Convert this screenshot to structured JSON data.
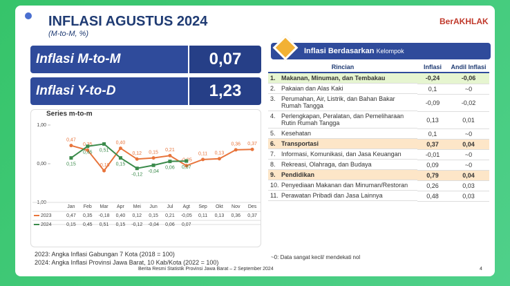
{
  "header": {
    "title": "INFLASI AGUSTUS 2024",
    "subtitle": "(M-to-M, %)",
    "logo": "BerAKHLAK"
  },
  "summary": [
    {
      "label": "Inflasi M-to-M",
      "value": "0,07"
    },
    {
      "label": "Inflasi Y-to-D",
      "value": "1,23"
    }
  ],
  "chart_data": {
    "type": "line",
    "title": "Series m-to-m",
    "categories": [
      "Jan",
      "Feb",
      "Mar",
      "Apr",
      "Mei",
      "Jun",
      "Jul",
      "Agt",
      "Sep",
      "Okt",
      "Nov",
      "Des"
    ],
    "series": [
      {
        "name": "2023",
        "color": "#e8743b",
        "marker": "circle",
        "values": [
          0.47,
          0.35,
          -0.18,
          0.4,
          0.12,
          0.15,
          0.21,
          -0.05,
          0.11,
          0.13,
          0.36,
          0.37
        ],
        "value_labels": [
          "0,47",
          "0,35",
          "-0,18",
          "0,40",
          "0,12",
          "0,15",
          "0,21",
          "-0,05",
          "0,11",
          "0,13",
          "0,36",
          "0,37"
        ]
      },
      {
        "name": "2024",
        "color": "#3a8a4a",
        "marker": "square",
        "values": [
          0.15,
          0.45,
          0.51,
          0.15,
          -0.12,
          -0.04,
          0.06,
          0.07,
          null,
          null,
          null,
          null
        ],
        "value_labels": [
          "0,15",
          "0,45",
          "0,51",
          "0,15",
          "-0,12",
          "-0,04",
          "0,06",
          "0,07",
          null,
          null,
          null,
          null
        ]
      }
    ],
    "ylim": [
      -1,
      1
    ],
    "yticks": [
      {
        "value": 1,
        "label": "1,00"
      },
      {
        "value": 0,
        "label": "0,00"
      },
      {
        "value": -1,
        "label": "-1,00"
      }
    ],
    "notes": [
      "2023: Angka Inflasi Gabungan 7 Kota (2018 = 100)",
      "2024: Angka Inflasi Provinsi Jawa Barat, 10 Kab/Kota (2022 = 100)"
    ]
  },
  "table": {
    "title": "Inflasi Berdasarkan",
    "title_small": "Kelompok",
    "columns": [
      "Rincian",
      "Inflasi",
      "Andil Inflasi"
    ],
    "rows": [
      {
        "no": "1.",
        "label": "Makanan, Minuman, dan Tembakau",
        "inflasi": "-0,24",
        "andil": "-0,06",
        "highlight": "green"
      },
      {
        "no": "2.",
        "label": "Pakaian dan Alas Kaki",
        "inflasi": "0,1",
        "andil": "~0"
      },
      {
        "no": "3.",
        "label": "Perumahan, Air, Listrik, dan Bahan Bakar Rumah Tangga",
        "inflasi": "-0,09",
        "andil": "-0,02"
      },
      {
        "no": "4.",
        "label": "Perlengkapan, Peralatan, dan Pemeliharaan Rutin Rumah Tangga",
        "inflasi": "0,13",
        "andil": "0,01"
      },
      {
        "no": "5.",
        "label": "Kesehatan",
        "inflasi": "0,1",
        "andil": "~0"
      },
      {
        "no": "6.",
        "label": "Transportasi",
        "inflasi": "0,37",
        "andil": "0,04",
        "highlight": "orange"
      },
      {
        "no": "7.",
        "label": "Informasi, Komunikasi, dan Jasa Keuangan",
        "inflasi": "-0,01",
        "andil": "~0"
      },
      {
        "no": "8.",
        "label": "Rekreasi, Olahraga, dan Budaya",
        "inflasi": "0,09",
        "andil": "~0"
      },
      {
        "no": "9.",
        "label": "Pendidikan",
        "inflasi": "0,79",
        "andil": "0,04",
        "highlight": "orange"
      },
      {
        "no": "10.",
        "label": "Penyediaan Makanan dan Minuman/Restoran",
        "inflasi": "0,26",
        "andil": "0,03"
      },
      {
        "no": "11.",
        "label": "Perawatan Pribadi dan Jasa Lainnya",
        "inflasi": "0,48",
        "andil": "0,03"
      }
    ],
    "note": "~0: Data sangat kecil/ mendekati nol"
  },
  "footer": {
    "source": "Berita Resmi Statistik Provinsi Jawa Barat – 2 September 2024",
    "page": "4"
  }
}
